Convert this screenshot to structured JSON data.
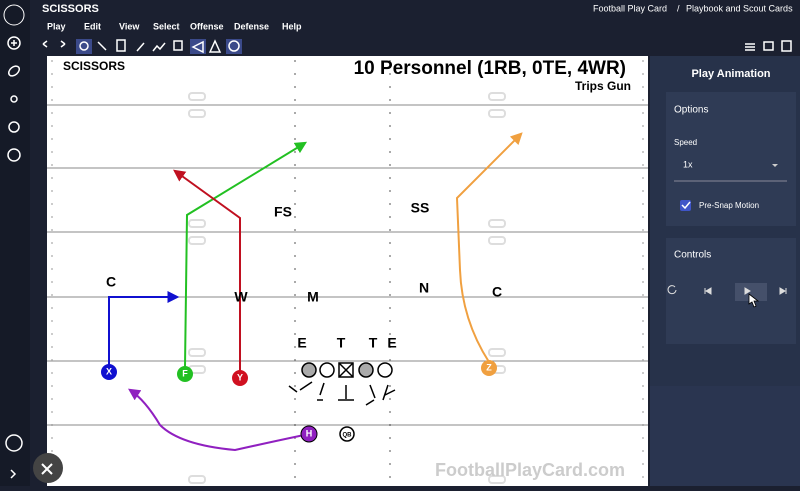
{
  "app_title": "SCISSORS",
  "menu": [
    "Play",
    "Edit",
    "View",
    "Select",
    "Offense",
    "Defense",
    "Help"
  ],
  "breadcrumb": {
    "site": "Football Play Card",
    "separator": "/",
    "page": "Playbook and Scout Cards"
  },
  "play": {
    "name": "SCISSORS",
    "personnel": "10 Personnel (1RB, 0TE, 4WR)",
    "formation": "Trips Gun",
    "defense": [
      "C",
      "W",
      "M",
      "FS",
      "SS",
      "N",
      "C",
      "E",
      "T",
      "T",
      "E"
    ],
    "offense": [
      "X",
      "F",
      "Y",
      "Z",
      "H",
      "QB"
    ],
    "watermark": "FootballPlayCard.com"
  },
  "panel": {
    "title": "Play Animation",
    "options": "Options",
    "speed_label": "Speed",
    "speed_value": "1x",
    "pre_snap": "Pre-Snap Motion",
    "controls": "Controls"
  }
}
